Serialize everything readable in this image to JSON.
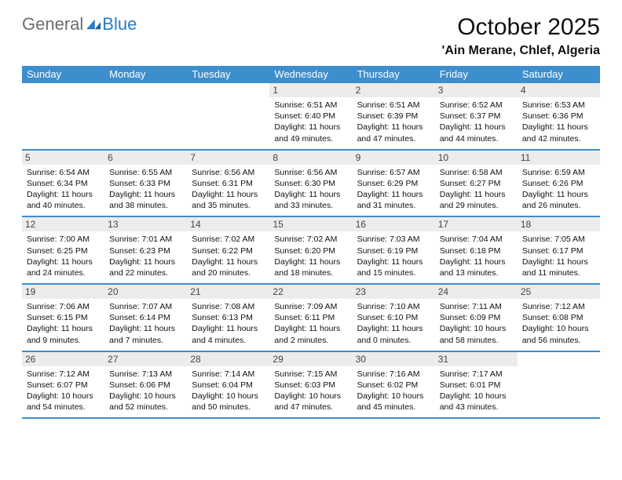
{
  "logo": {
    "general": "General",
    "blue": "Blue"
  },
  "title": "October 2025",
  "location": "'Ain Merane, Chlef, Algeria",
  "colors": {
    "header_bg": "#3d8ecd",
    "header_text": "#ffffff",
    "daynum_bg": "#ececec",
    "daynum_text": "#444444",
    "rule": "#3d8ecd",
    "body_text": "#111111",
    "logo_gray": "#6d6d6d",
    "logo_blue": "#2a7dc0"
  },
  "days_of_week": [
    "Sunday",
    "Monday",
    "Tuesday",
    "Wednesday",
    "Thursday",
    "Friday",
    "Saturday"
  ],
  "weeks": [
    [
      {
        "n": "",
        "empty": true
      },
      {
        "n": "",
        "empty": true
      },
      {
        "n": "",
        "empty": true
      },
      {
        "n": "1",
        "sunrise": "6:51 AM",
        "sunset": "6:40 PM",
        "day_h": "11",
        "day_m": "49"
      },
      {
        "n": "2",
        "sunrise": "6:51 AM",
        "sunset": "6:39 PM",
        "day_h": "11",
        "day_m": "47"
      },
      {
        "n": "3",
        "sunrise": "6:52 AM",
        "sunset": "6:37 PM",
        "day_h": "11",
        "day_m": "44"
      },
      {
        "n": "4",
        "sunrise": "6:53 AM",
        "sunset": "6:36 PM",
        "day_h": "11",
        "day_m": "42"
      }
    ],
    [
      {
        "n": "5",
        "sunrise": "6:54 AM",
        "sunset": "6:34 PM",
        "day_h": "11",
        "day_m": "40"
      },
      {
        "n": "6",
        "sunrise": "6:55 AM",
        "sunset": "6:33 PM",
        "day_h": "11",
        "day_m": "38"
      },
      {
        "n": "7",
        "sunrise": "6:56 AM",
        "sunset": "6:31 PM",
        "day_h": "11",
        "day_m": "35"
      },
      {
        "n": "8",
        "sunrise": "6:56 AM",
        "sunset": "6:30 PM",
        "day_h": "11",
        "day_m": "33"
      },
      {
        "n": "9",
        "sunrise": "6:57 AM",
        "sunset": "6:29 PM",
        "day_h": "11",
        "day_m": "31"
      },
      {
        "n": "10",
        "sunrise": "6:58 AM",
        "sunset": "6:27 PM",
        "day_h": "11",
        "day_m": "29"
      },
      {
        "n": "11",
        "sunrise": "6:59 AM",
        "sunset": "6:26 PM",
        "day_h": "11",
        "day_m": "26"
      }
    ],
    [
      {
        "n": "12",
        "sunrise": "7:00 AM",
        "sunset": "6:25 PM",
        "day_h": "11",
        "day_m": "24"
      },
      {
        "n": "13",
        "sunrise": "7:01 AM",
        "sunset": "6:23 PM",
        "day_h": "11",
        "day_m": "22"
      },
      {
        "n": "14",
        "sunrise": "7:02 AM",
        "sunset": "6:22 PM",
        "day_h": "11",
        "day_m": "20"
      },
      {
        "n": "15",
        "sunrise": "7:02 AM",
        "sunset": "6:20 PM",
        "day_h": "11",
        "day_m": "18"
      },
      {
        "n": "16",
        "sunrise": "7:03 AM",
        "sunset": "6:19 PM",
        "day_h": "11",
        "day_m": "15"
      },
      {
        "n": "17",
        "sunrise": "7:04 AM",
        "sunset": "6:18 PM",
        "day_h": "11",
        "day_m": "13"
      },
      {
        "n": "18",
        "sunrise": "7:05 AM",
        "sunset": "6:17 PM",
        "day_h": "11",
        "day_m": "11"
      }
    ],
    [
      {
        "n": "19",
        "sunrise": "7:06 AM",
        "sunset": "6:15 PM",
        "day_h": "11",
        "day_m": "9"
      },
      {
        "n": "20",
        "sunrise": "7:07 AM",
        "sunset": "6:14 PM",
        "day_h": "11",
        "day_m": "7"
      },
      {
        "n": "21",
        "sunrise": "7:08 AM",
        "sunset": "6:13 PM",
        "day_h": "11",
        "day_m": "4"
      },
      {
        "n": "22",
        "sunrise": "7:09 AM",
        "sunset": "6:11 PM",
        "day_h": "11",
        "day_m": "2"
      },
      {
        "n": "23",
        "sunrise": "7:10 AM",
        "sunset": "6:10 PM",
        "day_h": "11",
        "day_m": "0"
      },
      {
        "n": "24",
        "sunrise": "7:11 AM",
        "sunset": "6:09 PM",
        "day_h": "10",
        "day_m": "58"
      },
      {
        "n": "25",
        "sunrise": "7:12 AM",
        "sunset": "6:08 PM",
        "day_h": "10",
        "day_m": "56"
      }
    ],
    [
      {
        "n": "26",
        "sunrise": "7:12 AM",
        "sunset": "6:07 PM",
        "day_h": "10",
        "day_m": "54"
      },
      {
        "n": "27",
        "sunrise": "7:13 AM",
        "sunset": "6:06 PM",
        "day_h": "10",
        "day_m": "52"
      },
      {
        "n": "28",
        "sunrise": "7:14 AM",
        "sunset": "6:04 PM",
        "day_h": "10",
        "day_m": "50"
      },
      {
        "n": "29",
        "sunrise": "7:15 AM",
        "sunset": "6:03 PM",
        "day_h": "10",
        "day_m": "47"
      },
      {
        "n": "30",
        "sunrise": "7:16 AM",
        "sunset": "6:02 PM",
        "day_h": "10",
        "day_m": "45"
      },
      {
        "n": "31",
        "sunrise": "7:17 AM",
        "sunset": "6:01 PM",
        "day_h": "10",
        "day_m": "43"
      },
      {
        "n": "",
        "empty": true
      }
    ]
  ],
  "labels": {
    "sunrise": "Sunrise:",
    "sunset": "Sunset:",
    "daylight": "Daylight:",
    "hours_word": "hours",
    "and_word": "and",
    "minutes_word": "minutes."
  }
}
